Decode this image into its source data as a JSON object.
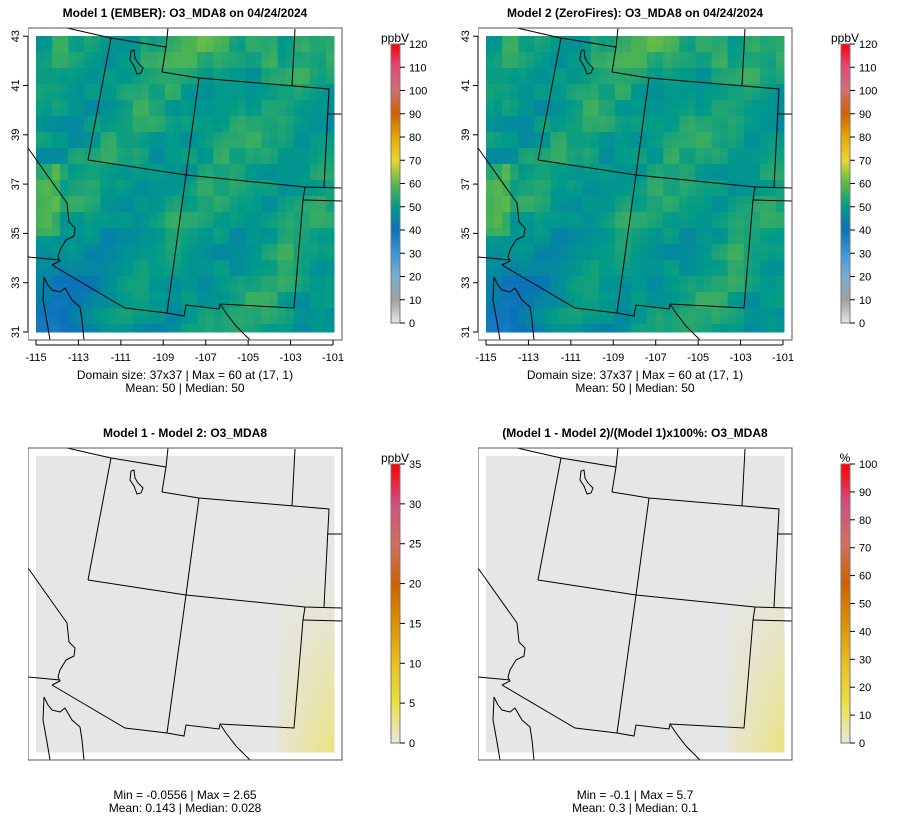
{
  "chart_data": [
    {
      "type": "heatmap",
      "title": "Model 1 (EMBER): O3_MDA8 on 04/24/2024",
      "caption1": "Domain size: 37x37 | Max = 60 at (17, 1)",
      "caption2": "Mean: 50 |  Median: 50",
      "xticks": [
        "-115",
        "-113",
        "-111",
        "-109",
        "-107",
        "-105",
        "-103",
        "-101"
      ],
      "yticks": [
        "31",
        "33",
        "35",
        "37",
        "39",
        "41",
        "43"
      ],
      "unit": "ppbV",
      "cbar_ticks": [
        "0",
        "10",
        "20",
        "30",
        "40",
        "50",
        "60",
        "70",
        "80",
        "90",
        "100",
        "110",
        "120"
      ],
      "cbar_range": [
        0,
        120
      ],
      "mean": 50,
      "max": 60,
      "kind": "abs"
    },
    {
      "type": "heatmap",
      "title": "Model 2 (ZeroFires): O3_MDA8 on 04/24/2024",
      "caption1": "Domain size: 37x37 | Max = 60 at (17, 1)",
      "caption2": "Mean: 50 |  Median: 50",
      "xticks": [
        "-115",
        "-113",
        "-111",
        "-109",
        "-107",
        "-105",
        "-103",
        "-101"
      ],
      "yticks": [
        "31",
        "33",
        "35",
        "37",
        "39",
        "41",
        "43"
      ],
      "unit": "ppbV",
      "cbar_ticks": [
        "0",
        "10",
        "20",
        "30",
        "40",
        "50",
        "60",
        "70",
        "80",
        "90",
        "100",
        "110",
        "120"
      ],
      "cbar_range": [
        0,
        120
      ],
      "mean": 50,
      "max": 60,
      "kind": "abs"
    },
    {
      "type": "heatmap",
      "title": "Model 1 - Model 2: O3_MDA8",
      "caption1": "Min = -0.0556 | Max = 2.65",
      "caption2": "Mean: 0.143 |  Median: 0.028",
      "xticks": [],
      "yticks": [],
      "unit": "ppbV",
      "cbar_ticks": [
        "0",
        "5",
        "10",
        "15",
        "20",
        "25",
        "30",
        "35"
      ],
      "cbar_range": [
        0,
        35
      ],
      "min": -0.0556,
      "max": 2.65,
      "kind": "diff"
    },
    {
      "type": "heatmap",
      "title": "(Model 1 - Model 2)/(Model 1)x100%: O3_MDA8",
      "caption1": "Min = -0.1 | Max = 5.7",
      "caption2": "Mean: 0.3 |  Median: 0.1",
      "xticks": [],
      "yticks": [],
      "unit": "%",
      "cbar_ticks": [
        "0",
        "10",
        "20",
        "30",
        "40",
        "50",
        "60",
        "70",
        "80",
        "90",
        "100"
      ],
      "cbar_range": [
        0,
        100
      ],
      "min": -0.1,
      "max": 5.7,
      "kind": "diff"
    }
  ],
  "colors": {
    "abs": [
      "#e6e6e6",
      "#a0a0a0",
      "#7aaed0",
      "#3a96d8",
      "#0a72b8",
      "#009a8a",
      "#5cb84a",
      "#e8d830",
      "#e8a800",
      "#d06000",
      "#d07070",
      "#e04a80",
      "#ff0000"
    ],
    "diff": [
      "#e6e6e6",
      "#ece040",
      "#e8c020",
      "#e09000",
      "#d06000",
      "#d07060",
      "#d05080",
      "#ff0000"
    ]
  }
}
